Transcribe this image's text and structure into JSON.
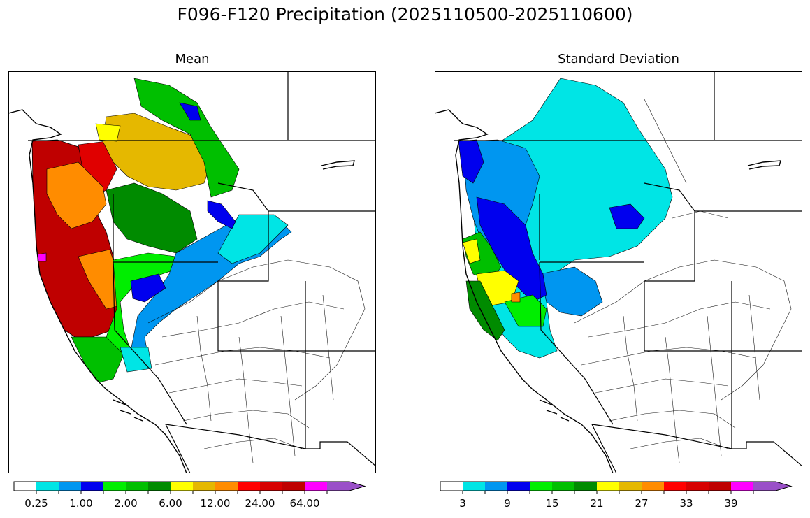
{
  "figure": {
    "title": "F096-F120 Precipitation (2025110500-2025110600)"
  },
  "panels": [
    {
      "title": "Mean",
      "colorbar": {
        "tick_labels": [
          "0.25",
          "1.00",
          "2.00",
          "6.00",
          "12.00",
          "24.00",
          "64.00"
        ],
        "tick_label_slots": [
          1,
          3,
          5,
          7,
          9,
          11,
          13
        ]
      }
    },
    {
      "title": "Standard Deviation",
      "colorbar": {
        "tick_labels": [
          "3",
          "9",
          "15",
          "21",
          "27",
          "33",
          "39"
        ],
        "tick_label_slots": [
          1,
          3,
          5,
          7,
          9,
          11,
          13
        ]
      }
    }
  ],
  "colorbar_colors": [
    "#ffffff",
    "#00e5e5",
    "#0096f0",
    "#0000ee",
    "#00ee00",
    "#00bf00",
    "#008b00",
    "#ffff00",
    "#e5b800",
    "#ff8c00",
    "#ff0000",
    "#d70000",
    "#bf0000",
    "#ff00ff",
    "#9a50c8"
  ],
  "colors": {
    "state_border": "#000000",
    "basin_outline": "#000000",
    "no_data": "#ffffff"
  }
}
